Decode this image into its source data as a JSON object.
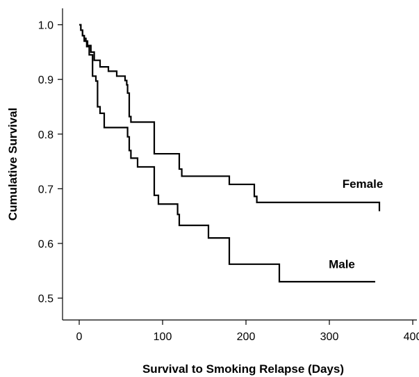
{
  "chart_data": {
    "type": "line",
    "title": "",
    "xlabel": "Survival to Smoking Relapse (Days)",
    "ylabel": "Cumulative Survival",
    "xlim": [
      -20,
      405
    ],
    "ylim": [
      0.46,
      1.03
    ],
    "xticks": [
      0,
      100,
      200,
      300,
      400
    ],
    "yticks": [
      0.5,
      0.6,
      0.7,
      0.8,
      0.9,
      1.0
    ],
    "ytick_labels": [
      "0.5",
      "0.6",
      "0.7",
      "0.8",
      "0.9",
      "1.0"
    ],
    "grid": false,
    "step": true,
    "series": [
      {
        "name": "Female",
        "x": [
          0,
          2,
          4,
          6,
          8,
          10,
          14,
          18,
          25,
          35,
          45,
          55,
          57,
          58,
          60,
          62,
          90,
          120,
          123,
          180,
          210,
          213,
          360
        ],
        "y": [
          1.0,
          0.99,
          0.98,
          0.975,
          0.97,
          0.962,
          0.95,
          0.935,
          0.923,
          0.915,
          0.906,
          0.898,
          0.89,
          0.875,
          0.832,
          0.822,
          0.764,
          0.736,
          0.723,
          0.708,
          0.686,
          0.675,
          0.659
        ]
      },
      {
        "name": "Male",
        "x": [
          0,
          2,
          4,
          6,
          9,
          12,
          16,
          20,
          22,
          25,
          30,
          58,
          60,
          62,
          70,
          90,
          95,
          118,
          120,
          155,
          180,
          240,
          355
        ],
        "y": [
          1.0,
          0.99,
          0.98,
          0.97,
          0.96,
          0.945,
          0.906,
          0.897,
          0.85,
          0.838,
          0.812,
          0.795,
          0.77,
          0.756,
          0.74,
          0.688,
          0.672,
          0.653,
          0.633,
          0.61,
          0.562,
          0.53,
          0.53
        ]
      }
    ]
  }
}
